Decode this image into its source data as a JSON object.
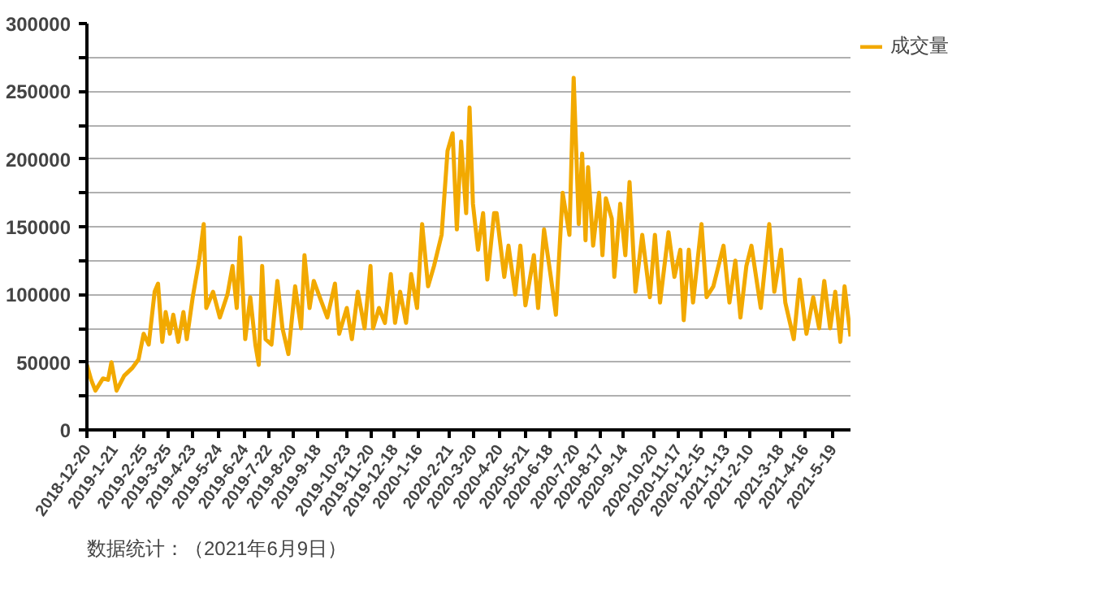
{
  "chart_data": {
    "type": "line",
    "x": [
      "2018-12-20",
      "2018-12-25",
      "2018-12-30",
      "2019-01-08",
      "2019-01-14",
      "2019-01-18",
      "2019-01-24",
      "2019-02-02",
      "2019-02-12",
      "2019-02-19",
      "2019-02-25",
      "2019-03-03",
      "2019-03-10",
      "2019-03-14",
      "2019-03-19",
      "2019-03-23",
      "2019-03-28",
      "2019-04-01",
      "2019-04-07",
      "2019-04-13",
      "2019-04-17",
      "2019-04-24",
      "2019-05-02",
      "2019-05-07",
      "2019-05-10",
      "2019-05-18",
      "2019-05-26",
      "2019-06-04",
      "2019-06-10",
      "2019-06-15",
      "2019-06-19",
      "2019-06-25",
      "2019-07-01",
      "2019-07-07",
      "2019-07-11",
      "2019-07-15",
      "2019-07-19",
      "2019-07-26",
      "2019-08-02",
      "2019-08-08",
      "2019-08-15",
      "2019-08-23",
      "2019-08-30",
      "2019-09-03",
      "2019-09-09",
      "2019-09-14",
      "2019-09-21",
      "2019-09-30",
      "2019-10-09",
      "2019-10-14",
      "2019-10-23",
      "2019-10-29",
      "2019-11-05",
      "2019-11-13",
      "2019-11-20",
      "2019-11-23",
      "2019-11-30",
      "2019-12-07",
      "2019-12-14",
      "2019-12-19",
      "2019-12-25",
      "2020-01-01",
      "2020-01-07",
      "2020-01-14",
      "2020-01-20",
      "2020-01-27",
      "2020-02-03",
      "2020-02-12",
      "2020-02-19",
      "2020-02-25",
      "2020-03-01",
      "2020-03-06",
      "2020-03-12",
      "2020-03-16",
      "2020-03-20",
      "2020-03-26",
      "2020-04-01",
      "2020-04-06",
      "2020-04-14",
      "2020-04-17",
      "2020-04-26",
      "2020-05-01",
      "2020-05-09",
      "2020-05-15",
      "2020-05-21",
      "2020-05-31",
      "2020-06-05",
      "2020-06-12",
      "2020-06-20",
      "2020-06-26",
      "2020-07-04",
      "2020-07-12",
      "2020-07-17",
      "2020-07-23",
      "2020-07-27",
      "2020-07-31",
      "2020-08-03",
      "2020-08-09",
      "2020-08-16",
      "2020-08-20",
      "2020-08-24",
      "2020-08-31",
      "2020-09-03",
      "2020-09-10",
      "2020-09-16",
      "2020-09-21",
      "2020-09-28",
      "2020-10-06",
      "2020-10-15",
      "2020-10-21",
      "2020-10-27",
      "2020-11-06",
      "2020-11-13",
      "2020-11-20",
      "2020-11-24",
      "2020-11-30",
      "2020-12-05",
      "2020-12-15",
      "2020-12-21",
      "2020-12-29",
      "2021-01-10",
      "2021-01-17",
      "2021-01-24",
      "2021-01-30",
      "2021-02-06",
      "2021-02-12",
      "2021-02-23",
      "2021-03-05",
      "2021-03-11",
      "2021-03-19",
      "2021-03-24",
      "2021-04-03",
      "2021-04-10",
      "2021-04-18",
      "2021-04-26",
      "2021-05-03",
      "2021-05-09",
      "2021-05-16",
      "2021-05-22",
      "2021-05-28",
      "2021-06-02",
      "2021-06-09"
    ],
    "series": [
      {
        "name": "成交量",
        "color": "#f2a900",
        "values": [
          48000,
          37000,
          29000,
          38000,
          37000,
          50000,
          29000,
          40000,
          46000,
          52000,
          71000,
          63000,
          102000,
          108000,
          65000,
          87000,
          71000,
          85000,
          65000,
          87000,
          67000,
          98000,
          127000,
          152000,
          90000,
          102000,
          83000,
          100000,
          121000,
          90000,
          142000,
          67000,
          98000,
          63000,
          48000,
          121000,
          67000,
          63000,
          110000,
          75000,
          56000,
          106000,
          75000,
          129000,
          90000,
          110000,
          98000,
          83000,
          108000,
          71000,
          90000,
          67000,
          102000,
          75000,
          121000,
          75000,
          90000,
          79000,
          115000,
          79000,
          102000,
          79000,
          115000,
          90000,
          152000,
          106000,
          121000,
          144000,
          206000,
          219000,
          148000,
          213000,
          160000,
          238000,
          167000,
          133000,
          160000,
          111000,
          160000,
          160000,
          113000,
          136000,
          100000,
          136000,
          92000,
          129000,
          90000,
          148000,
          113000,
          85000,
          175000,
          144000,
          260000,
          152000,
          204000,
          140000,
          194000,
          136000,
          175000,
          129000,
          171000,
          156000,
          113000,
          167000,
          129000,
          183000,
          102000,
          144000,
          98000,
          144000,
          94000,
          146000,
          113000,
          133000,
          81000,
          133000,
          94000,
          152000,
          98000,
          106000,
          136000,
          94000,
          125000,
          83000,
          121000,
          136000,
          90000,
          152000,
          102000,
          133000,
          94000,
          67000,
          111000,
          71000,
          98000,
          75000,
          110000,
          75000,
          102000,
          65000,
          106000,
          69000
        ]
      }
    ],
    "xlim": [
      "2018-12-20",
      "2021-06-09"
    ],
    "xticks": [
      {
        "value": "2018-12-20",
        "label": "2018-12-20"
      },
      {
        "value": "2019-01-21",
        "label": "2019-1-21"
      },
      {
        "value": "2019-02-25",
        "label": "2019-2-25"
      },
      {
        "value": "2019-03-25",
        "label": "2019-3-25"
      },
      {
        "value": "2019-04-23",
        "label": "2019-4-23"
      },
      {
        "value": "2019-05-24",
        "label": "2019-5-24"
      },
      {
        "value": "2019-06-24",
        "label": "2019-6-24"
      },
      {
        "value": "2019-07-22",
        "label": "2019-7-22"
      },
      {
        "value": "2019-08-20",
        "label": "2019-8-20"
      },
      {
        "value": "2019-09-18",
        "label": "2019-9-18"
      },
      {
        "value": "2019-10-23",
        "label": "2019-10-23"
      },
      {
        "value": "2019-11-20",
        "label": "2019-11-20"
      },
      {
        "value": "2019-12-18",
        "label": "2019-12-18"
      },
      {
        "value": "2020-01-16",
        "label": "2020-1-16"
      },
      {
        "value": "2020-02-21",
        "label": "2020-2-21"
      },
      {
        "value": "2020-03-20",
        "label": "2020-3-20"
      },
      {
        "value": "2020-04-20",
        "label": "2020-4-20"
      },
      {
        "value": "2020-05-21",
        "label": "2020-5-21"
      },
      {
        "value": "2020-06-18",
        "label": "2020-6-18"
      },
      {
        "value": "2020-07-20",
        "label": "2020-7-20"
      },
      {
        "value": "2020-08-17",
        "label": "2020-8-17"
      },
      {
        "value": "2020-09-14",
        "label": "2020-9-14"
      },
      {
        "value": "2020-10-20",
        "label": "2020-10-20"
      },
      {
        "value": "2020-11-17",
        "label": "2020-11-17"
      },
      {
        "value": "2020-12-15",
        "label": "2020-12-15"
      },
      {
        "value": "2021-01-13",
        "label": "2021-1-13"
      },
      {
        "value": "2021-02-10",
        "label": "2021-2-10"
      },
      {
        "value": "2021-03-18",
        "label": "2021-3-18"
      },
      {
        "value": "2021-04-16",
        "label": "2021-4-16"
      },
      {
        "value": "2021-05-19",
        "label": "2021-5-19"
      }
    ],
    "ylim": [
      0,
      300000
    ],
    "yticks": [
      0,
      {
        "value": 25000,
        "label": null
      },
      50000,
      {
        "value": 75000,
        "label": null
      },
      100000,
      {
        "value": 125000,
        "label": null
      },
      150000,
      {
        "value": 175000,
        "label": null
      },
      200000,
      {
        "value": 225000,
        "label": null
      },
      250000,
      {
        "value": 275000,
        "label": null
      },
      300000
    ],
    "grid": "y",
    "legend": "right",
    "marker": "none",
    "line_style": "solid",
    "annotations": [
      "数据统计：（2021年6月9日）"
    ]
  }
}
